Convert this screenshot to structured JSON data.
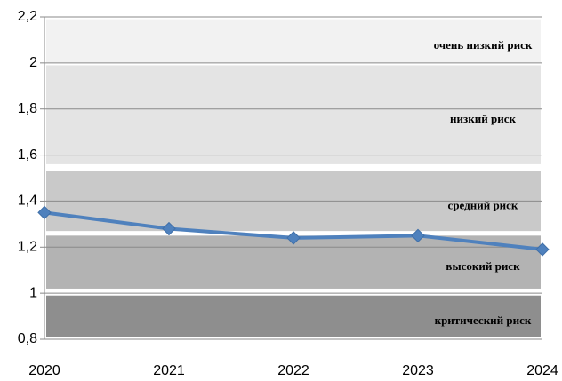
{
  "chart_data": {
    "type": "line",
    "categories": [
      "2020",
      "2021",
      "2022",
      "2023",
      "2024"
    ],
    "values": [
      1.35,
      1.28,
      1.24,
      1.25,
      1.19
    ],
    "color": "#4f81bd",
    "ylim": [
      0.8,
      2.2
    ],
    "yticks": [
      {
        "value": 0.8,
        "label": "0,8"
      },
      1,
      {
        "value": 1.2,
        "label": "1,2"
      },
      {
        "value": 1.4,
        "label": "1,4"
      },
      {
        "value": 1.6,
        "label": "1,6"
      },
      {
        "value": 1.8,
        "label": "1,8"
      },
      2,
      {
        "value": 2.2,
        "label": "2,2"
      }
    ],
    "grid": true,
    "bands": [
      {
        "label": "очень низкий риск",
        "from": 2.0,
        "to": 2.19,
        "color": "#f2f2f2"
      },
      {
        "label": "низкий риск",
        "from": 1.56,
        "to": 1.99,
        "color": "#e4e4e4"
      },
      {
        "label": "средний риск",
        "from": 1.27,
        "to": 1.53,
        "color": "#c9c9c9"
      },
      {
        "label": "высокий риск",
        "from": 1.02,
        "to": 1.25,
        "color": "#b3b3b3"
      },
      {
        "label": "критический риск",
        "from": 0.81,
        "to": 0.99,
        "color": "#8e8e8e"
      }
    ]
  }
}
